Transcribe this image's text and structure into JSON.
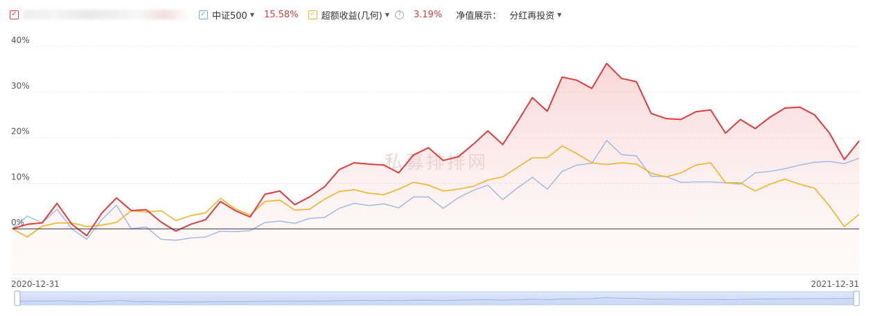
{
  "legend": {
    "fund": {
      "name": "",
      "checked": true,
      "color": "#e03b3b"
    },
    "index": {
      "name": "中证500",
      "value": "15.58%",
      "checked": true,
      "color": "#6fa8e8"
    },
    "excess": {
      "name": "超额收益(几何)",
      "value": "3.19%",
      "checked": true,
      "color": "#f5b325"
    },
    "nav_label": "净值展示：",
    "nav_mode": "分红再投资"
  },
  "watermark": "私募排排网",
  "chart_data": {
    "type": "line",
    "x_start": "2020-12-31",
    "x_end": "2021-12-31",
    "yticks": [
      0,
      10,
      20,
      30,
      40
    ],
    "ytick_labels": [
      "0%",
      "10%",
      "20%",
      "30%",
      "40%"
    ],
    "ylim": [
      -10,
      42
    ],
    "grid": true,
    "series": [
      {
        "name": "",
        "color": "#e03b3b",
        "area": true,
        "values": [
          0,
          1,
          1.3,
          5.6,
          1,
          -1.5,
          3.4,
          6.8,
          4,
          4.2,
          1.5,
          -0.5,
          1,
          2,
          6,
          4,
          2.6,
          7.6,
          8.3,
          5.3,
          7,
          9.2,
          13,
          14.5,
          14.2,
          14,
          12.3,
          16.2,
          17.8,
          15,
          15.8,
          18.5,
          21.5,
          18.5,
          23.5,
          28.8,
          25.8,
          33.3,
          32.6,
          30.8,
          36.3,
          33,
          32.3,
          25.3,
          24.2,
          24,
          25.7,
          26.1,
          21,
          24,
          22,
          24.5,
          26.5,
          26.7,
          25,
          21,
          15.2,
          19.3
        ]
      },
      {
        "name": "中证500",
        "color": "#a9bde3",
        "values": [
          0,
          2.8,
          1.3,
          4.3,
          0,
          -2.3,
          2,
          5.2,
          0,
          0.4,
          -2.3,
          -2.5,
          -2,
          -1.8,
          -0.5,
          -0.6,
          -0.4,
          1.4,
          1.7,
          1.2,
          2.3,
          2.5,
          4.5,
          5.6,
          5.1,
          5.5,
          4.6,
          7,
          7,
          4.5,
          6.8,
          8.4,
          9.6,
          6.4,
          9,
          11.3,
          8.7,
          12.6,
          14,
          14.4,
          19.4,
          16.3,
          16,
          11.5,
          11.5,
          10.2,
          10.3,
          10.3,
          10.1,
          9.8,
          12.3,
          12.6,
          13.2,
          14,
          14.6,
          14.8,
          14.3,
          15.5
        ]
      },
      {
        "name": "超额收益(几何)",
        "color": "#f5b325",
        "values": [
          0,
          -1.8,
          0.6,
          1.3,
          1.3,
          0.5,
          0.8,
          1.4,
          4,
          3.7,
          4,
          1.8,
          2.9,
          3.5,
          6.7,
          4.4,
          3,
          6,
          6.3,
          4.1,
          4.3,
          6.5,
          8.2,
          8.6,
          7.8,
          7.5,
          8.7,
          10.2,
          9.6,
          8.3,
          8.7,
          9.3,
          10.7,
          11.4,
          13.5,
          15.6,
          15.6,
          18.2,
          16.5,
          14.5,
          14.1,
          14.5,
          14.2,
          12.2,
          11.4,
          12.3,
          14,
          14.5,
          10.1,
          10.1,
          8.3,
          9.8,
          10.9,
          9.8,
          8.9,
          5,
          0.5,
          3.2
        ]
      }
    ]
  }
}
